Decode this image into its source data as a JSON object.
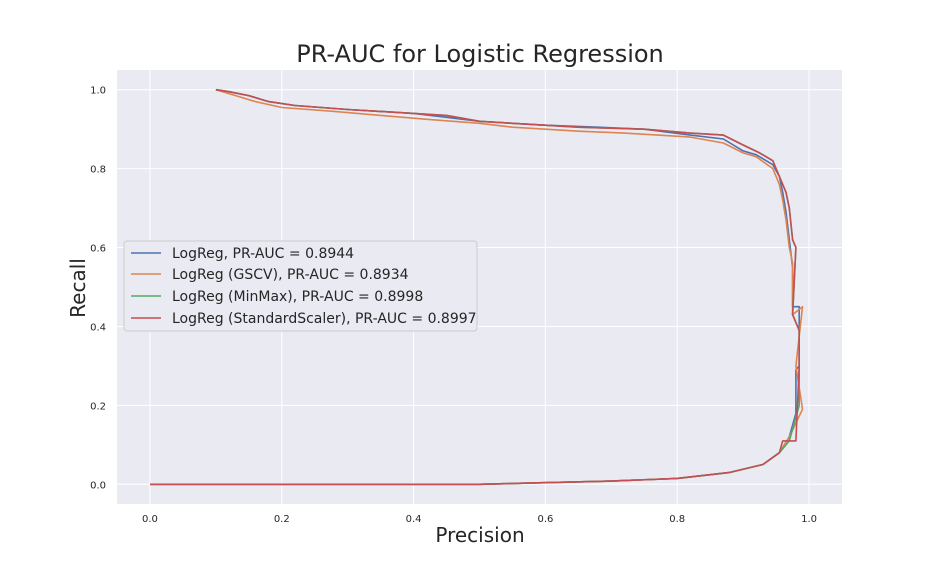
{
  "chart_data": {
    "type": "line",
    "title": "PR-AUC for Logistic Regression",
    "xlabel": "Precision",
    "ylabel": "Recall",
    "xlim": [
      -0.05,
      1.05
    ],
    "ylim": [
      -0.05,
      1.05
    ],
    "xticks": [
      "0.0",
      "0.2",
      "0.4",
      "0.6",
      "0.8",
      "1.0"
    ],
    "yticks": [
      "0.0",
      "0.2",
      "0.4",
      "0.6",
      "0.8",
      "1.0"
    ],
    "grid": true,
    "legend_position": "center-left",
    "series": [
      {
        "name": "LogReg, PR-AUC = 0.8944",
        "color": "#4c72b0",
        "points": [
          [
            0.0,
            0.0
          ],
          [
            0.5,
            0.0
          ],
          [
            0.7,
            0.008
          ],
          [
            0.8,
            0.015
          ],
          [
            0.88,
            0.03
          ],
          [
            0.93,
            0.05
          ],
          [
            0.955,
            0.08
          ],
          [
            0.97,
            0.12
          ],
          [
            0.98,
            0.18
          ],
          [
            0.98,
            0.29
          ],
          [
            0.985,
            0.3
          ],
          [
            0.985,
            0.45
          ],
          [
            0.975,
            0.45
          ],
          [
            0.975,
            0.55
          ],
          [
            0.97,
            0.62
          ],
          [
            0.965,
            0.69
          ],
          [
            0.96,
            0.74
          ],
          [
            0.955,
            0.78
          ],
          [
            0.945,
            0.81
          ],
          [
            0.92,
            0.835
          ],
          [
            0.9,
            0.845
          ],
          [
            0.87,
            0.875
          ],
          [
            0.82,
            0.885
          ],
          [
            0.75,
            0.9
          ],
          [
            0.68,
            0.905
          ],
          [
            0.6,
            0.91
          ],
          [
            0.55,
            0.915
          ],
          [
            0.5,
            0.92
          ],
          [
            0.45,
            0.93
          ],
          [
            0.4,
            0.94
          ],
          [
            0.3,
            0.95
          ],
          [
            0.22,
            0.96
          ],
          [
            0.18,
            0.97
          ],
          [
            0.15,
            0.985
          ],
          [
            0.12,
            0.995
          ],
          [
            0.1,
            1.0
          ]
        ]
      },
      {
        "name": "LogReg (GSCV), PR-AUC = 0.8934",
        "color": "#dd8452",
        "points": [
          [
            0.0,
            0.0
          ],
          [
            0.5,
            0.0
          ],
          [
            0.7,
            0.008
          ],
          [
            0.8,
            0.015
          ],
          [
            0.88,
            0.03
          ],
          [
            0.93,
            0.05
          ],
          [
            0.955,
            0.08
          ],
          [
            0.97,
            0.12
          ],
          [
            0.99,
            0.19
          ],
          [
            0.98,
            0.3
          ],
          [
            0.99,
            0.45
          ],
          [
            0.975,
            0.43
          ],
          [
            0.975,
            0.56
          ],
          [
            0.97,
            0.6
          ],
          [
            0.965,
            0.67
          ],
          [
            0.96,
            0.72
          ],
          [
            0.955,
            0.76
          ],
          [
            0.945,
            0.8
          ],
          [
            0.92,
            0.83
          ],
          [
            0.9,
            0.84
          ],
          [
            0.87,
            0.865
          ],
          [
            0.82,
            0.88
          ],
          [
            0.72,
            0.89
          ],
          [
            0.65,
            0.895
          ],
          [
            0.55,
            0.905
          ],
          [
            0.5,
            0.915
          ],
          [
            0.42,
            0.925
          ],
          [
            0.35,
            0.935
          ],
          [
            0.28,
            0.945
          ],
          [
            0.2,
            0.955
          ],
          [
            0.16,
            0.97
          ],
          [
            0.13,
            0.985
          ],
          [
            0.1,
            1.0
          ]
        ]
      },
      {
        "name": "LogReg (MinMax), PR-AUC = 0.8998",
        "color": "#55a868",
        "points": [
          [
            0.0,
            0.0
          ],
          [
            0.5,
            0.0
          ],
          [
            0.7,
            0.008
          ],
          [
            0.8,
            0.015
          ],
          [
            0.88,
            0.03
          ],
          [
            0.93,
            0.05
          ],
          [
            0.955,
            0.08
          ],
          [
            0.97,
            0.11
          ],
          [
            0.985,
            0.2
          ],
          [
            0.985,
            0.3
          ],
          [
            0.985,
            0.39
          ],
          [
            0.975,
            0.43
          ],
          [
            0.98,
            0.6
          ],
          [
            0.975,
            0.62
          ],
          [
            0.97,
            0.7
          ],
          [
            0.965,
            0.74
          ],
          [
            0.955,
            0.78
          ],
          [
            0.945,
            0.82
          ],
          [
            0.925,
            0.84
          ],
          [
            0.9,
            0.86
          ],
          [
            0.87,
            0.885
          ],
          [
            0.82,
            0.89
          ],
          [
            0.75,
            0.9
          ],
          [
            0.65,
            0.905
          ],
          [
            0.55,
            0.915
          ],
          [
            0.5,
            0.92
          ],
          [
            0.45,
            0.935
          ],
          [
            0.4,
            0.94
          ],
          [
            0.3,
            0.95
          ],
          [
            0.22,
            0.96
          ],
          [
            0.18,
            0.97
          ],
          [
            0.15,
            0.985
          ],
          [
            0.12,
            0.995
          ],
          [
            0.1,
            1.0
          ]
        ]
      },
      {
        "name": "LogReg (StandardScaler), PR-AUC = 0.8997",
        "color": "#c44e52",
        "points": [
          [
            0.0,
            0.0
          ],
          [
            0.5,
            0.0
          ],
          [
            0.7,
            0.008
          ],
          [
            0.8,
            0.015
          ],
          [
            0.88,
            0.03
          ],
          [
            0.93,
            0.05
          ],
          [
            0.955,
            0.08
          ],
          [
            0.96,
            0.11
          ],
          [
            0.98,
            0.11
          ],
          [
            0.985,
            0.3
          ],
          [
            0.985,
            0.39
          ],
          [
            0.975,
            0.43
          ],
          [
            0.98,
            0.6
          ],
          [
            0.975,
            0.62
          ],
          [
            0.97,
            0.7
          ],
          [
            0.965,
            0.74
          ],
          [
            0.955,
            0.78
          ],
          [
            0.945,
            0.82
          ],
          [
            0.925,
            0.84
          ],
          [
            0.9,
            0.86
          ],
          [
            0.87,
            0.885
          ],
          [
            0.82,
            0.89
          ],
          [
            0.75,
            0.9
          ],
          [
            0.65,
            0.905
          ],
          [
            0.55,
            0.915
          ],
          [
            0.5,
            0.92
          ],
          [
            0.45,
            0.935
          ],
          [
            0.4,
            0.94
          ],
          [
            0.3,
            0.95
          ],
          [
            0.22,
            0.96
          ],
          [
            0.18,
            0.97
          ],
          [
            0.15,
            0.985
          ],
          [
            0.12,
            0.995
          ],
          [
            0.1,
            1.0
          ]
        ]
      }
    ]
  }
}
